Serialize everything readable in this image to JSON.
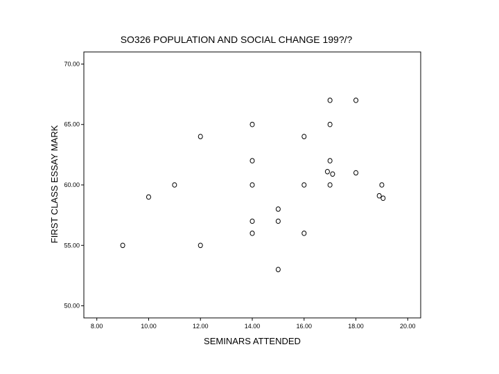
{
  "colors": {
    "background": "#ffffff",
    "axes": "#000000",
    "marker": "#000000"
  },
  "chart_data": {
    "type": "scatter",
    "title": "SO326 POPULATION AND SOCIAL CHANGE 199?/?",
    "xlabel": "SEMINARS ATTENDED",
    "ylabel": "FIRST CLASS ESSAY MARK",
    "xlim": [
      7.5,
      20.5
    ],
    "ylim": [
      49,
      71
    ],
    "xticks": [
      8,
      10,
      12,
      14,
      16,
      18,
      20
    ],
    "xtick_labels": [
      "8.00",
      "10.00",
      "12.00",
      "14.00",
      "16.00",
      "18.00",
      "20.00"
    ],
    "yticks": [
      50,
      55,
      60,
      65,
      70
    ],
    "ytick_labels": [
      "50.00",
      "55.00",
      "60.00",
      "65.00",
      "70.00"
    ],
    "marker": "open-circle",
    "grid": false,
    "points": [
      {
        "x": 9,
        "y": 55
      },
      {
        "x": 10,
        "y": 59
      },
      {
        "x": 11,
        "y": 60
      },
      {
        "x": 12,
        "y": 64
      },
      {
        "x": 12,
        "y": 55
      },
      {
        "x": 14,
        "y": 65
      },
      {
        "x": 14,
        "y": 62
      },
      {
        "x": 14,
        "y": 60
      },
      {
        "x": 14,
        "y": 57
      },
      {
        "x": 14,
        "y": 56
      },
      {
        "x": 15,
        "y": 58
      },
      {
        "x": 15,
        "y": 57
      },
      {
        "x": 15,
        "y": 53
      },
      {
        "x": 16,
        "y": 64
      },
      {
        "x": 16,
        "y": 60
      },
      {
        "x": 16,
        "y": 56
      },
      {
        "x": 17,
        "y": 67
      },
      {
        "x": 17,
        "y": 65
      },
      {
        "x": 17,
        "y": 62
      },
      {
        "x": 16.9,
        "y": 61.1
      },
      {
        "x": 17.1,
        "y": 60.9
      },
      {
        "x": 17,
        "y": 60
      },
      {
        "x": 18,
        "y": 67
      },
      {
        "x": 18,
        "y": 61
      },
      {
        "x": 19,
        "y": 60
      },
      {
        "x": 18.9,
        "y": 59.1
      },
      {
        "x": 19.05,
        "y": 58.9
      }
    ]
  }
}
